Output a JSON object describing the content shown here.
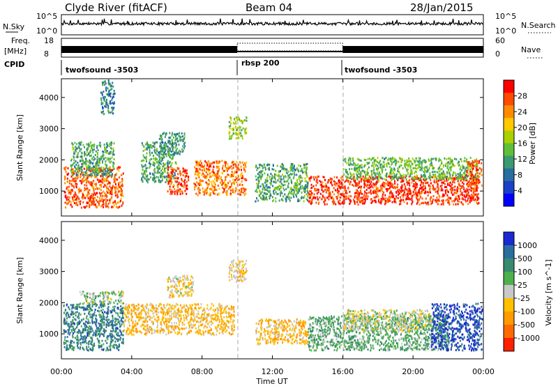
{
  "header": {
    "station": "Clyde River (fitACF)",
    "beam": "Beam 04",
    "date": "28/Jan/2015"
  },
  "status_panels": {
    "nsky_label": "N.Sky",
    "nsky_top": "10^5",
    "nsky_bottom": "10^0",
    "nsearch_label": "N.Search",
    "nsearch_top": "10^5",
    "nsearch_bottom": "10^0",
    "freq_label": "Freq.",
    "freq_unit": "[MHz]",
    "freq_top": "18",
    "freq_bottom": "8",
    "nave_label": "Nave",
    "nave_top": "60",
    "nave_bottom": "0",
    "cpid_label": "CPID",
    "cpid_segments": [
      {
        "label": "twofsound -3503",
        "start_hour": 0,
        "end_hour": 10
      },
      {
        "label": "rbsp 200",
        "start_hour": 10,
        "end_hour": 16
      },
      {
        "label": "twofsound -3503",
        "start_hour": 16,
        "end_hour": 24
      }
    ]
  },
  "x_axis": {
    "label": "Time UT",
    "ticks": [
      "00:00",
      "04:00",
      "08:00",
      "12:00",
      "16:00",
      "20:00",
      "00:00"
    ]
  },
  "power_colorbar": {
    "title": "Power [dB]",
    "ticks": [
      "28",
      "24",
      "20",
      "16",
      "12",
      "8",
      "4"
    ],
    "colors": [
      "#ff0000",
      "#ff4a00",
      "#ff8c00",
      "#ffc800",
      "#aad000",
      "#5fbe3a",
      "#3a9a70",
      "#2a6ea0",
      "#1a40c8",
      "#0000ff"
    ]
  },
  "velocity_colorbar": {
    "title": "Velocity [m s^-1]",
    "ticks": [
      "1000",
      "500",
      "100",
      "25",
      "-25",
      "-100",
      "-500",
      "-1000"
    ],
    "colors": [
      "#1a2ad0",
      "#2a6ea0",
      "#3a8a70",
      "#4cb04c",
      "#c8c8c8",
      "#ffc000",
      "#ff9a00",
      "#ff6a00",
      "#ff2000"
    ]
  },
  "chart_data": [
    {
      "type": "heatmap",
      "title": "Power",
      "xlabel": "Time UT",
      "ylabel": "Slant Range [km]",
      "xlim": [
        0,
        24
      ],
      "ylim": [
        200,
        4600
      ],
      "yticks": [
        1000,
        2000,
        3000,
        4000
      ],
      "colorbar_label": "Power [dB]",
      "colorbar_range": [
        0,
        32
      ],
      "scatter_regions": [
        {
          "t0": 0.1,
          "t1": 3.5,
          "r0": 500,
          "r1": 1800,
          "value": 28
        },
        {
          "t0": 0.5,
          "t1": 3.0,
          "r0": 1500,
          "r1": 2600,
          "value": 12
        },
        {
          "t0": 2.2,
          "t1": 3.0,
          "r0": 3500,
          "r1": 4600,
          "value": 8
        },
        {
          "t0": 4.5,
          "t1": 6.5,
          "r0": 1300,
          "r1": 2600,
          "value": 12
        },
        {
          "t0": 6.0,
          "t1": 7.2,
          "r0": 900,
          "r1": 1800,
          "value": 28
        },
        {
          "t0": 5.5,
          "t1": 7.0,
          "r0": 2200,
          "r1": 2900,
          "value": 10
        },
        {
          "t0": 7.5,
          "t1": 10.5,
          "r0": 900,
          "r1": 2000,
          "value": 26
        },
        {
          "t0": 9.5,
          "t1": 10.5,
          "r0": 2700,
          "r1": 3400,
          "value": 16
        },
        {
          "t0": 11.0,
          "t1": 14.0,
          "r0": 700,
          "r1": 1900,
          "value": 12
        },
        {
          "t0": 14.0,
          "t1": 23.7,
          "r0": 600,
          "r1": 1500,
          "value": 30
        },
        {
          "t0": 16.0,
          "t1": 23.7,
          "r0": 1400,
          "r1": 2100,
          "value": 14
        },
        {
          "t0": 23.0,
          "t1": 23.9,
          "r0": 1200,
          "r1": 2000,
          "value": 28
        }
      ]
    },
    {
      "type": "heatmap",
      "title": "Velocity",
      "xlabel": "Time UT",
      "ylabel": "Slant Range [km]",
      "xlim": [
        0,
        24
      ],
      "ylim": [
        200,
        4600
      ],
      "yticks": [
        1000,
        2000,
        3000,
        4000
      ],
      "colorbar_label": "Velocity [m s^-1]",
      "colorbar_range": [
        -1000,
        1000
      ],
      "scatter_regions": [
        {
          "t0": 0.1,
          "t1": 3.5,
          "r0": 500,
          "r1": 2000,
          "value": 600
        },
        {
          "t0": 1.0,
          "t1": 3.5,
          "r0": 2000,
          "r1": 2400,
          "value": 100
        },
        {
          "t0": 3.5,
          "t1": 9.8,
          "r0": 1000,
          "r1": 2000,
          "value": -300
        },
        {
          "t0": 6.0,
          "t1": 7.5,
          "r0": 2200,
          "r1": 2900,
          "value": -150
        },
        {
          "t0": 9.5,
          "t1": 10.5,
          "r0": 2700,
          "r1": 3400,
          "value": -200
        },
        {
          "t0": 11.0,
          "t1": 14.0,
          "r0": 700,
          "r1": 1500,
          "value": -300
        },
        {
          "t0": 14.0,
          "t1": 22.0,
          "r0": 500,
          "r1": 1600,
          "value": 300
        },
        {
          "t0": 16.0,
          "t1": 21.0,
          "r0": 1100,
          "r1": 1800,
          "value": 0
        },
        {
          "t0": 21.0,
          "t1": 23.9,
          "r0": 500,
          "r1": 2000,
          "value": 900
        }
      ]
    }
  ]
}
